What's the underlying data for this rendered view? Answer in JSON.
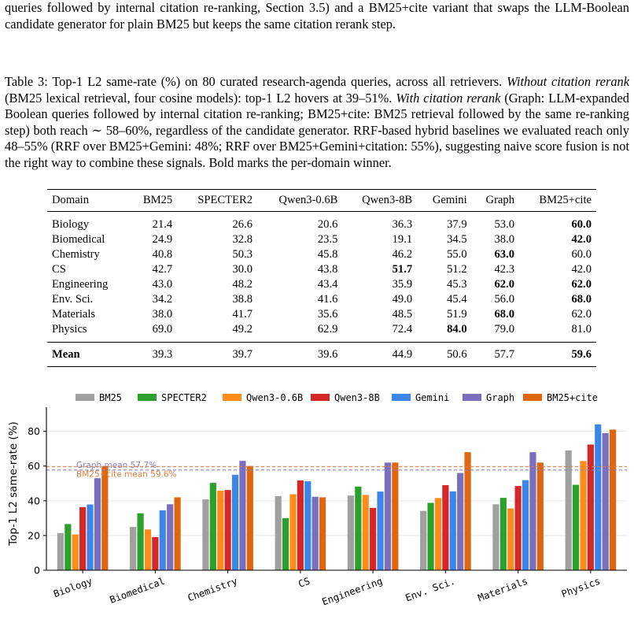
{
  "intro_text": "queries followed by internal citation re-ranking, Section 3.5) and a BM25+cite variant that swaps the LLM-Boolean candidate generator for plain BM25 but keeps the same citation rerank step.",
  "caption": {
    "part1": "Table 3: Top-1 L2 same-rate (%) on 80 curated research-agenda queries, across all retrievers. ",
    "italic1": "Without citation rerank",
    "part2": " (BM25 lexical retrieval, four cosine models): top-1 L2 hovers at 39–51%. ",
    "italic2": "With citation rerank",
    "part3": " (Graph: LLM-expanded Boolean queries followed by internal citation re-ranking; BM25+cite: BM25 retrieval followed by the same re-ranking step) both reach ∼ 58–60%, regardless of the candidate generator. RRF-based hybrid baselines we evaluated reach only 48–55% (RRF over BM25+Gemini: 48%; RRF over BM25+Gemini+citation: 55%), suggesting naive score fusion is not the right way to combine these signals. Bold marks the per-domain winner."
  },
  "table": {
    "headers": [
      "Domain",
      "BM25",
      "SPECTER2",
      "Qwen3-0.6B",
      "Qwen3-8B",
      "Gemini",
      "Graph",
      "BM25+cite"
    ],
    "rows": [
      {
        "domain": "Biology",
        "cells": [
          "21.4",
          "26.6",
          "20.6",
          "36.3",
          "37.9",
          "53.0",
          "60.0"
        ],
        "bold": [
          6
        ]
      },
      {
        "domain": "Biomedical",
        "cells": [
          "24.9",
          "32.8",
          "23.5",
          "19.1",
          "34.5",
          "38.0",
          "42.0"
        ],
        "bold": [
          6
        ]
      },
      {
        "domain": "Chemistry",
        "cells": [
          "40.8",
          "50.3",
          "45.8",
          "46.2",
          "55.0",
          "63.0",
          "60.0"
        ],
        "bold": [
          5
        ]
      },
      {
        "domain": "CS",
        "cells": [
          "42.7",
          "30.0",
          "43.8",
          "51.7",
          "51.2",
          "42.3",
          "42.0"
        ],
        "bold": [
          3
        ]
      },
      {
        "domain": "Engineering",
        "cells": [
          "43.0",
          "48.2",
          "43.4",
          "35.9",
          "45.3",
          "62.0",
          "62.0"
        ],
        "bold": [
          5,
          6
        ]
      },
      {
        "domain": "Env. Sci.",
        "cells": [
          "34.2",
          "38.8",
          "41.6",
          "49.0",
          "45.4",
          "56.0",
          "68.0"
        ],
        "bold": [
          6
        ]
      },
      {
        "domain": "Materials",
        "cells": [
          "38.0",
          "41.7",
          "35.6",
          "48.5",
          "51.9",
          "68.0",
          "62.0"
        ],
        "bold": [
          5
        ]
      },
      {
        "domain": "Physics",
        "cells": [
          "69.0",
          "49.2",
          "62.9",
          "72.4",
          "84.0",
          "79.0",
          "81.0"
        ],
        "bold": [
          4
        ]
      }
    ],
    "mean": {
      "label": "Mean",
      "cells": [
        "39.3",
        "39.7",
        "39.6",
        "44.9",
        "50.6",
        "57.7",
        "59.6"
      ],
      "bold": [
        6
      ]
    }
  },
  "chart_data": {
    "type": "bar",
    "categories": [
      "Biology",
      "Biomedical",
      "Chemistry",
      "CS",
      "Engineering",
      "Env. Sci.",
      "Materials",
      "Physics"
    ],
    "series": [
      {
        "name": "BM25",
        "color": "#a0a0a0",
        "values": [
          21.4,
          24.9,
          40.8,
          42.7,
          43.0,
          34.2,
          38.0,
          69.0
        ]
      },
      {
        "name": "SPECTER2",
        "color": "#2ca02c",
        "values": [
          26.6,
          32.8,
          50.3,
          30.0,
          48.2,
          38.8,
          41.7,
          49.2
        ]
      },
      {
        "name": "Qwen3-0.6B",
        "color": "#ff8c1a",
        "values": [
          20.6,
          23.5,
          45.8,
          43.8,
          43.4,
          41.6,
          35.6,
          62.9
        ]
      },
      {
        "name": "Qwen3-8B",
        "color": "#d62728",
        "values": [
          36.3,
          19.1,
          46.2,
          51.7,
          35.9,
          49.0,
          48.5,
          72.4
        ]
      },
      {
        "name": "Gemini",
        "color": "#3b86e8",
        "values": [
          37.9,
          34.5,
          55.0,
          51.2,
          45.3,
          45.4,
          51.9,
          84.0
        ]
      },
      {
        "name": "Graph",
        "color": "#7b6fbd",
        "values": [
          53.0,
          38.0,
          63.0,
          42.3,
          62.0,
          56.0,
          68.0,
          79.0
        ]
      },
      {
        "name": "BM25+cite",
        "color": "#e0650f",
        "values": [
          60.0,
          42.0,
          60.0,
          42.0,
          62.0,
          68.0,
          62.0,
          81.0
        ]
      }
    ],
    "ylabel": "Top-1 L2 same-rate (%)",
    "xlabel": "",
    "ylim": [
      0,
      93
    ],
    "yticks": [
      0,
      20,
      40,
      60,
      80
    ],
    "reference_lines": [
      {
        "label": "Graph mean 57.7%",
        "value": 57.7,
        "color": "#8a82c6"
      },
      {
        "label": "BM25+cite mean 59.6%",
        "value": 59.6,
        "color": "#e27b3a"
      }
    ],
    "legend_position": "top",
    "grid": "horizontal"
  }
}
